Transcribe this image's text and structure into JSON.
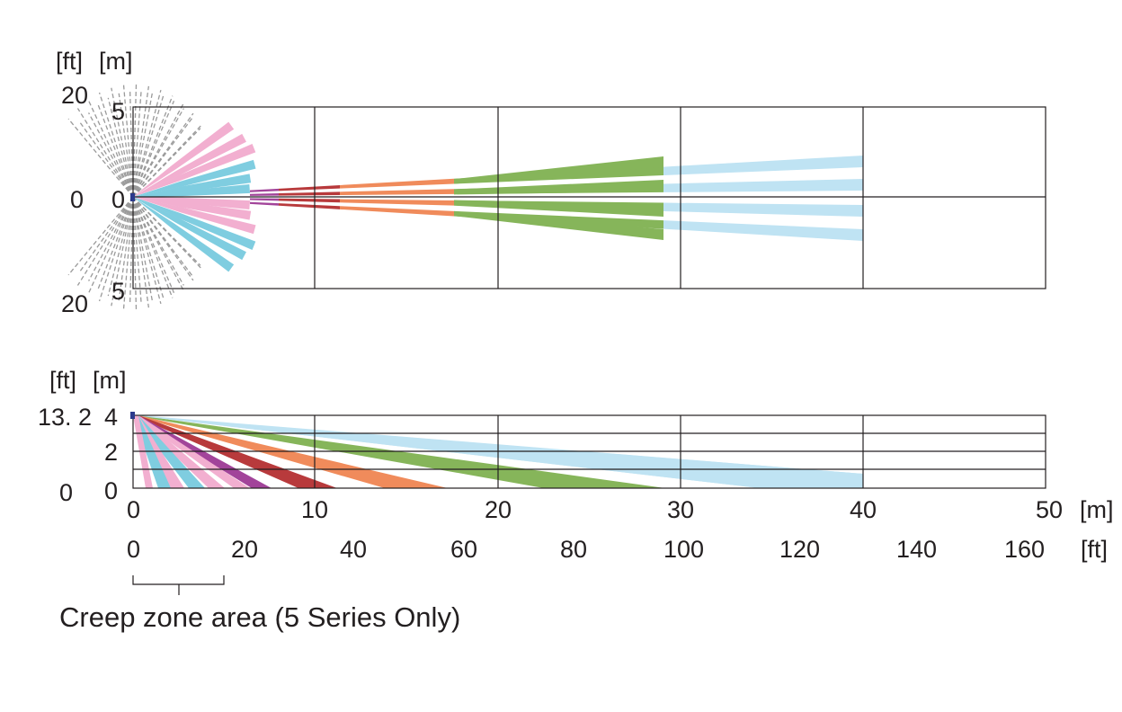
{
  "top_view": {
    "unit_ft": "[ft]",
    "unit_m": "[m]",
    "y_ft_ticks": [
      "20",
      "0",
      "20"
    ],
    "y_m_ticks": [
      "5",
      "0",
      "5"
    ]
  },
  "side_view": {
    "unit_ft": "[ft]",
    "unit_m": "[m]",
    "y_ft_ticks": [
      "13. 2",
      "0"
    ],
    "y_m_ticks": [
      "4",
      "2",
      "0"
    ],
    "install_height_m": 4
  },
  "x_axis": {
    "m_ticks": [
      "0",
      "10",
      "20",
      "30",
      "40",
      "50"
    ],
    "m_unit": "[m]",
    "ft_ticks": [
      "0",
      "20",
      "40",
      "60",
      "80",
      "100",
      "120",
      "140",
      "160"
    ],
    "ft_unit": "[ft]"
  },
  "creep_zone": {
    "label": "Creep zone area (5 Series Only)",
    "range_ft": [
      0,
      20
    ]
  },
  "colors": {
    "light_blue": "#bfe3f3",
    "green": "#86b55a",
    "orange": "#f08b5b",
    "red": "#b83a3c",
    "purple": "#a2449a",
    "pink": "#f2afd0",
    "cyan": "#7fcde0",
    "grey_dashed": "#9a9a9a",
    "sensor": "#2b3a8c"
  },
  "beams": {
    "long_range": [
      {
        "color": "light_blue",
        "end_m": 40
      },
      {
        "color": "green",
        "end_m": 29
      },
      {
        "color": "orange",
        "end_m": 17.5
      },
      {
        "color": "red",
        "end_m": 11.3
      },
      {
        "color": "purple",
        "end_m": 8
      }
    ],
    "short_range": [
      {
        "color": "pink",
        "end_m": 5
      },
      {
        "color": "cyan",
        "end_m": 5
      }
    ]
  }
}
